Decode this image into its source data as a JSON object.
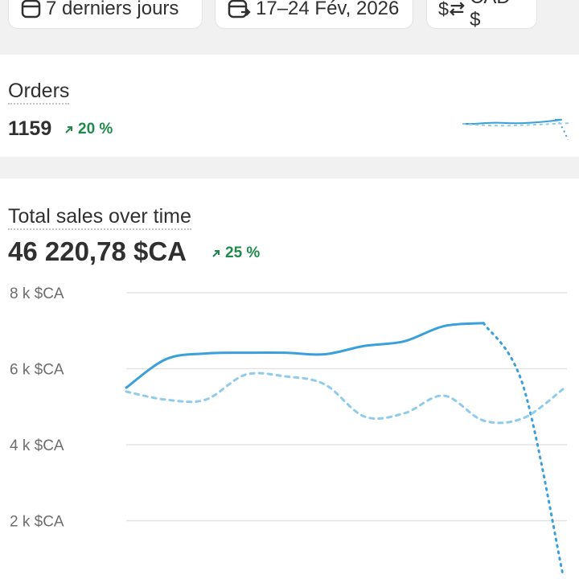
{
  "filters": {
    "period": "7 derniers jours",
    "dates": "17–24 Fév, 2026",
    "currency": "CAD $"
  },
  "orders": {
    "title": "Orders",
    "value": "1159",
    "change": "20 %"
  },
  "sales": {
    "title": "Total sales over time",
    "value": "46 220,78 $CA",
    "change": "25 %"
  },
  "chart_data": {
    "type": "line",
    "categories": [
      null,
      null,
      null,
      null,
      null,
      null,
      null,
      null,
      null,
      null,
      null,
      null
    ],
    "series": [
      {
        "color": "#3aa0db",
        "dash": "none",
        "values": [
          5500,
          6250,
          6400,
          6420,
          6420,
          6380,
          6600,
          6720,
          7120,
          7200,
          null,
          null
        ]
      },
      {
        "color": "#3aa0db",
        "dash": "2 6",
        "values": [
          null,
          null,
          null,
          null,
          null,
          null,
          null,
          null,
          null,
          7200,
          5545,
          571
        ]
      },
      {
        "color": "#8fcbea",
        "dash": "5 6",
        "values": [
          5397,
          5185,
          5185,
          5841,
          5799,
          5587,
          4741,
          4825,
          5291,
          4635,
          4698,
          5460
        ]
      }
    ],
    "ylim": [
      0,
      8000
    ],
    "yticks": [
      {
        "value": 8000,
        "label": "8 k $CA"
      },
      {
        "value": 6000,
        "label": "6 k $CA"
      },
      {
        "value": 4000,
        "label": "4 k $CA"
      },
      {
        "value": 2000,
        "label": "2 k $CA"
      }
    ],
    "grid": true
  }
}
